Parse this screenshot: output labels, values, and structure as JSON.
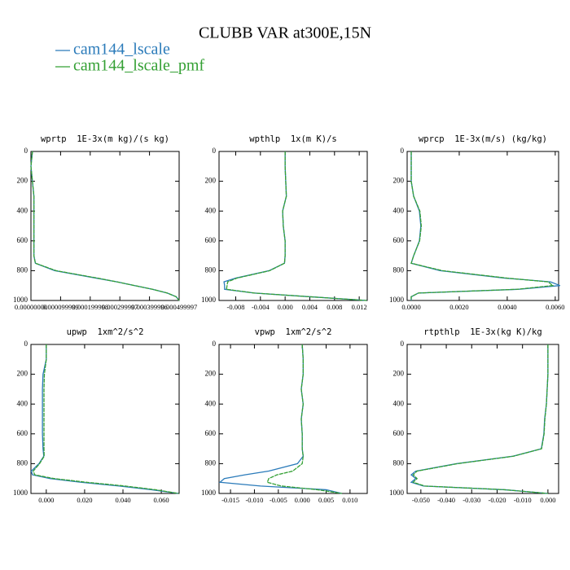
{
  "title": "CLUBB VAR at300E,15N",
  "chart_data": [
    {
      "type": "line",
      "title": "wprtp  1E-3x(m kg)/(s kg)",
      "levels": [
        0,
        100,
        200,
        300,
        400,
        500,
        600,
        700,
        750,
        800,
        850,
        875,
        900,
        925,
        950,
        975,
        1000
      ],
      "xlim": [
        0,
        0.0005
      ],
      "xticks": [
        {
          "value": 0,
          "label": "0.00000000"
        },
        {
          "value": 9.9999e-05,
          "label": "0.000099999"
        },
        {
          "value": 0.000199998,
          "label": "0.000199998"
        },
        {
          "value": 0.000299997,
          "label": "0.000299997"
        },
        {
          "value": 0.000399996,
          "label": "0.000399996"
        },
        {
          "value": 0.000499997,
          "label": "0.000499997"
        }
      ],
      "ylim": [
        0,
        1000
      ],
      "yticks": [
        0,
        200,
        400,
        600,
        800,
        1000
      ],
      "y_reversed": true,
      "series": [
        {
          "name": "cam144_lscale",
          "color": "#2b7bba",
          "values": [
            5e-06,
            0,
            5e-06,
            1e-05,
            1e-05,
            1e-05,
            1e-05,
            1e-05,
            1.5e-05,
            8e-05,
            0.00022,
            0.00029,
            0.00035,
            0.00041,
            0.00046,
            0.00049,
            0.0005
          ]
        },
        {
          "name": "cam144_lscale_pmf",
          "color": "#34a034",
          "values": [
            5e-06,
            0,
            5e-06,
            1e-05,
            1e-05,
            1e-05,
            1e-05,
            1e-05,
            1.5e-05,
            8.5e-05,
            0.000225,
            0.00029,
            0.00035,
            0.00041,
            0.00046,
            0.00049,
            0.0005
          ]
        }
      ]
    },
    {
      "type": "line",
      "title": "wpthlp  1x(m K)/s",
      "levels": [
        0,
        100,
        200,
        300,
        400,
        500,
        600,
        700,
        750,
        800,
        850,
        875,
        900,
        925,
        950,
        975,
        1000
      ],
      "xlim": [
        -0.0107,
        0.0133
      ],
      "xticks": [
        -0.008,
        -0.004,
        {
          "value": 0,
          "label": "0.000"
        },
        0.004,
        0.008,
        0.012
      ],
      "ylim": [
        0,
        1000
      ],
      "yticks": [
        0,
        200,
        400,
        600,
        800,
        1000
      ],
      "y_reversed": true,
      "series": [
        {
          "name": "cam144_lscale",
          "color": "#2b7bba",
          "values": [
            0,
            0,
            0.0001,
            0.0002,
            -0.0004,
            -0.0003,
            0,
            0,
            -0.0001,
            -0.0026,
            -0.008,
            -0.0099,
            -0.0098,
            -0.0098,
            -0.005,
            0.004,
            0.0132
          ]
        },
        {
          "name": "cam144_lscale_pmf",
          "color": "#34a034",
          "values": [
            0,
            0,
            0.0001,
            0.0002,
            -0.0004,
            -0.0003,
            0,
            0,
            -0.0001,
            -0.0025,
            -0.0078,
            -0.0093,
            -0.0094,
            -0.0095,
            -0.005,
            0.004,
            0.0132
          ]
        }
      ]
    },
    {
      "type": "line",
      "title": "wprcp  1E-3x(m/s) (kg/kg)",
      "levels": [
        0,
        100,
        200,
        300,
        400,
        500,
        600,
        700,
        750,
        800,
        850,
        875,
        900,
        925,
        950,
        975,
        1000
      ],
      "xlim": [
        -0.00017,
        0.00614
      ],
      "xticks": [
        {
          "value": 0,
          "label": "0.0000"
        },
        {
          "value": 0.002,
          "label": "0.0020"
        },
        {
          "value": 0.004,
          "label": "0.0040"
        },
        {
          "value": 0.006,
          "label": "0.0060"
        }
      ],
      "ylim": [
        0,
        1000
      ],
      "yticks": [
        0,
        200,
        400,
        600,
        800,
        1000
      ],
      "y_reversed": true,
      "series": [
        {
          "name": "cam144_lscale",
          "color": "#2b7bba",
          "values": [
            0,
            0,
            0,
            0.0001,
            0.00034,
            0.0004,
            0.00034,
            0.0001,
            0,
            0.0012,
            0.0039,
            0.0058,
            0.0062,
            0.0045,
            0.0003,
            0,
            0
          ]
        },
        {
          "name": "cam144_lscale_pmf",
          "color": "#34a034",
          "values": [
            0,
            0,
            0,
            0.0001,
            0.00036,
            0.00042,
            0.00035,
            0.0001,
            0,
            0.0013,
            0.004,
            0.0057,
            0.0059,
            0.0044,
            0.0003,
            0,
            0
          ]
        }
      ]
    },
    {
      "type": "line",
      "title": "upwp  1xm^2/s^2",
      "levels": [
        0,
        100,
        200,
        300,
        400,
        500,
        600,
        700,
        750,
        800,
        850,
        875,
        900,
        925,
        950,
        975,
        1000
      ],
      "xlim": [
        -0.008,
        0.0693
      ],
      "xticks": [
        {
          "value": 0,
          "label": "0.000"
        },
        {
          "value": 0.02,
          "label": "0.020"
        },
        {
          "value": 0.04,
          "label": "0.040"
        },
        {
          "value": 0.06,
          "label": "0.060"
        }
      ],
      "ylim": [
        0,
        1000
      ],
      "yticks": [
        0,
        200,
        400,
        600,
        800,
        1000
      ],
      "y_reversed": true,
      "series": [
        {
          "name": "cam144_lscale",
          "color": "#2b7bba",
          "values": [
            0,
            0,
            -0.0017,
            -0.002,
            -0.002,
            -0.002,
            -0.002,
            -0.0017,
            -0.0013,
            -0.0038,
            -0.0078,
            -0.0072,
            0.002,
            0.018,
            0.038,
            0.055,
            0.069
          ]
        },
        {
          "name": "cam144_lscale_pmf",
          "color": "#34a034",
          "values": [
            0,
            0,
            -0.001,
            -0.0012,
            -0.0012,
            -0.0012,
            -0.0012,
            -0.0012,
            -0.0011,
            -0.0035,
            -0.0068,
            -0.006,
            0.004,
            0.021,
            0.041,
            0.057,
            0.069
          ]
        }
      ]
    },
    {
      "type": "line",
      "title": "vpwp  1xm^2/s^2",
      "levels": [
        0,
        100,
        200,
        300,
        400,
        500,
        600,
        700,
        750,
        800,
        850,
        875,
        900,
        925,
        950,
        975,
        1000
      ],
      "xlim": [
        -0.0174,
        0.0136
      ],
      "xticks": [
        -0.015,
        {
          "value": -0.01,
          "label": "-0.010"
        },
        -0.005,
        {
          "value": 0,
          "label": "0.000"
        },
        0.005,
        {
          "value": 0.01,
          "label": "0.010"
        }
      ],
      "ylim": [
        0,
        1000
      ],
      "yticks": [
        0,
        200,
        400,
        600,
        800,
        1000
      ],
      "y_reversed": true,
      "series": [
        {
          "name": "cam144_lscale",
          "color": "#2b7bba",
          "values": [
            0,
            0.0002,
            0.0002,
            -0.0002,
            0.0002,
            -0.0002,
            0,
            0,
            0.0002,
            -0.001,
            -0.007,
            -0.012,
            -0.0163,
            -0.0172,
            -0.0087,
            0.005,
            0.0083
          ]
        },
        {
          "name": "cam144_lscale_pmf",
          "color": "#34a034",
          "values": [
            0,
            0.0002,
            0.0002,
            -0.0002,
            0.0002,
            -0.0002,
            0,
            0,
            0.0002,
            0,
            -0.002,
            -0.0053,
            -0.007,
            -0.0073,
            -0.0044,
            0.0032,
            0.0083
          ]
        }
      ]
    },
    {
      "type": "line",
      "title": "rtpthlp  1E-3x(kg K)/kg",
      "levels": [
        0,
        100,
        200,
        300,
        400,
        500,
        600,
        700,
        750,
        800,
        850,
        875,
        900,
        925,
        950,
        975,
        1000
      ],
      "xlim": [
        -0.0554,
        0.0042
      ],
      "xticks": [
        {
          "value": -0.05,
          "label": "-0.050"
        },
        {
          "value": -0.04,
          "label": "-0.040"
        },
        {
          "value": -0.03,
          "label": "-0.030"
        },
        {
          "value": -0.02,
          "label": "-0.020"
        },
        {
          "value": -0.01,
          "label": "-0.010"
        },
        {
          "value": 0,
          "label": "0.000"
        }
      ],
      "ylim": [
        0,
        1000
      ],
      "yticks": [
        0,
        200,
        400,
        600,
        800,
        1000
      ],
      "y_reversed": true,
      "series": [
        {
          "name": "cam144_lscale",
          "color": "#2b7bba",
          "values": [
            0,
            0,
            0,
            -0.0003,
            -0.0006,
            -0.0013,
            -0.0016,
            -0.0026,
            -0.0138,
            -0.036,
            -0.052,
            -0.0538,
            -0.052,
            -0.0538,
            -0.049,
            -0.017,
            0
          ]
        },
        {
          "name": "cam144_lscale_pmf",
          "color": "#34a034",
          "values": [
            0,
            0,
            0,
            -0.0003,
            -0.0006,
            -0.0012,
            -0.0015,
            -0.0025,
            -0.0135,
            -0.0355,
            -0.0515,
            -0.053,
            -0.0515,
            -0.053,
            -0.0485,
            -0.017,
            0
          ]
        }
      ]
    }
  ]
}
